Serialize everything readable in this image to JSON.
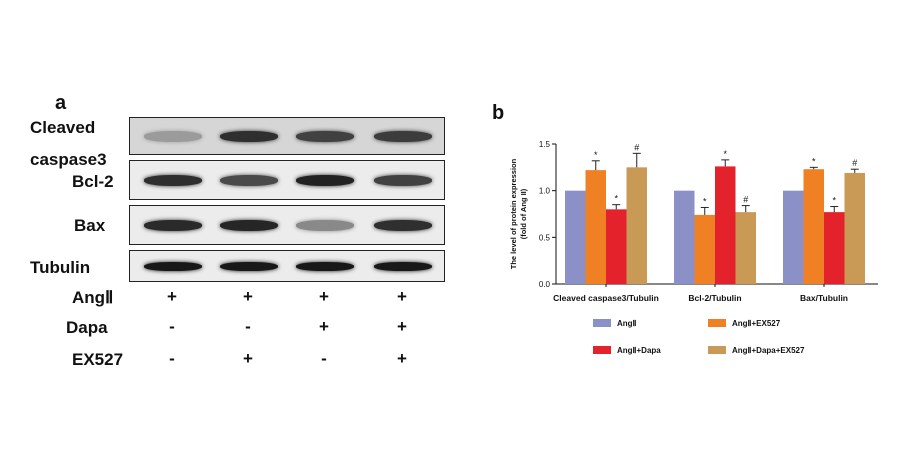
{
  "panel_a_label": "a",
  "panel_b_label": "b",
  "blot": {
    "rows": [
      {
        "label_lines": [
          "Cleaved",
          "caspase3"
        ],
        "intensity": [
          0.25,
          0.85,
          0.75,
          0.78
        ]
      },
      {
        "label_lines": [
          "Bcl-2"
        ],
        "intensity": [
          0.85,
          0.7,
          0.92,
          0.75
        ]
      },
      {
        "label_lines": [
          "Bax"
        ],
        "intensity": [
          0.88,
          0.9,
          0.35,
          0.85
        ]
      },
      {
        "label_lines": [
          "Tubulin"
        ],
        "intensity": [
          0.98,
          0.98,
          0.98,
          0.98
        ]
      }
    ],
    "treatments": [
      {
        "label": "AngⅡ",
        "signs": [
          "+",
          "+",
          "+",
          "+"
        ]
      },
      {
        "label": "Dapa",
        "signs": [
          "-",
          "-",
          "+",
          "+"
        ]
      },
      {
        "label": "EX527",
        "signs": [
          "-",
          "+",
          "-",
          "+"
        ]
      }
    ]
  },
  "chart_data": {
    "type": "bar",
    "title": "",
    "ylabel_lines": [
      "The level of protein expression",
      "(fold of Ang II)"
    ],
    "xlabel": "",
    "ylim": [
      0,
      1.5
    ],
    "yticks": [
      "0.0",
      "0.5",
      "1.0",
      "1.5"
    ],
    "categories": [
      "Cleaved caspase3/Tubulin",
      "Bcl-2/Tubulin",
      "Bax/Tubulin"
    ],
    "series": [
      {
        "name": "AngⅡ",
        "color": "#8b90c6",
        "values": [
          1.0,
          1.0,
          1.0
        ],
        "errors": [
          0,
          0,
          0
        ],
        "marks": [
          "",
          "",
          ""
        ]
      },
      {
        "name": "AngⅡ+EX527",
        "color": "#ef8124",
        "values": [
          1.22,
          0.74,
          1.23
        ],
        "errors": [
          0.1,
          0.08,
          0.02
        ],
        "marks": [
          "*",
          "*",
          "*"
        ]
      },
      {
        "name": "AngⅡ+Dapa",
        "color": "#e3222c",
        "values": [
          0.8,
          1.26,
          0.77
        ],
        "errors": [
          0.05,
          0.07,
          0.06
        ],
        "marks": [
          "*",
          "*",
          "*"
        ]
      },
      {
        "name": "AngⅡ+Dapa+EX527",
        "color": "#c99a56",
        "values": [
          1.25,
          0.77,
          1.19
        ],
        "errors": [
          0.15,
          0.07,
          0.04
        ],
        "marks": [
          "#",
          "#",
          "#"
        ]
      }
    ],
    "legend_position": "bottom"
  }
}
